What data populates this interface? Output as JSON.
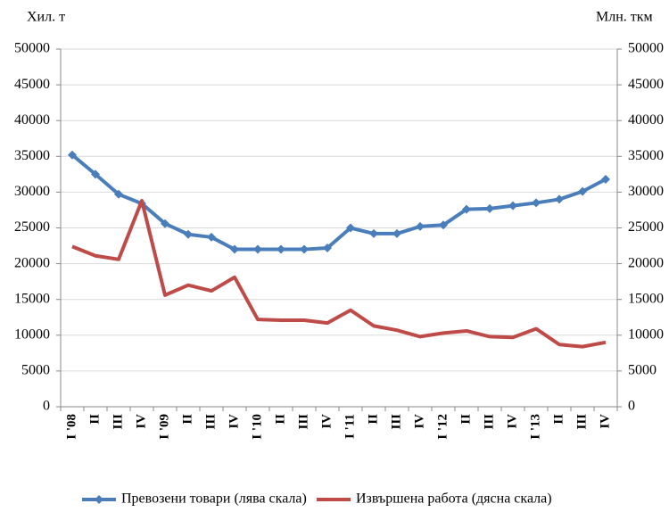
{
  "chart_data": {
    "type": "line",
    "y_label": "Хил. т",
    "y2_label": "Млн. ткм",
    "categories": [
      "I '08",
      "II",
      "III",
      "IV",
      "I '09",
      "II",
      "III",
      "IV",
      "I '10",
      "II",
      "III",
      "IV",
      "I '11",
      "II",
      "III",
      "IV",
      "I '12",
      "II",
      "III",
      "IV",
      "I '13",
      "II",
      "III",
      "IV"
    ],
    "series": [
      {
        "name": "Превозени товари (лява скала)",
        "color": "#4a7ebb",
        "marker": "diamond",
        "values": [
          35200,
          32500,
          29700,
          28400,
          25600,
          24100,
          23700,
          22000,
          22000,
          22000,
          22000,
          22200,
          25000,
          24200,
          24200,
          25200,
          25400,
          27600,
          27700,
          28100,
          28500,
          29000,
          30100,
          31800
        ]
      },
      {
        "name": "Извършена работа (дясна скала)",
        "color": "#be4b48",
        "axis": "y2",
        "values": [
          22400,
          21100,
          20600,
          28800,
          15600,
          17000,
          16200,
          18100,
          12200,
          12100,
          12100,
          11700,
          13500,
          11300,
          10700,
          9800,
          10300,
          10600,
          9800,
          9700,
          10900,
          8700,
          8400,
          9000
        ]
      }
    ],
    "ylim": [
      0,
      50000
    ],
    "yticks": [
      0,
      5000,
      10000,
      15000,
      20000,
      25000,
      30000,
      35000,
      40000,
      45000,
      50000
    ],
    "y2lim": [
      0,
      50000
    ],
    "y2ticks": [
      0,
      5000,
      10000,
      15000,
      20000,
      25000,
      30000,
      35000,
      40000,
      45000,
      50000
    ],
    "grid": true,
    "legend": "bottom"
  }
}
